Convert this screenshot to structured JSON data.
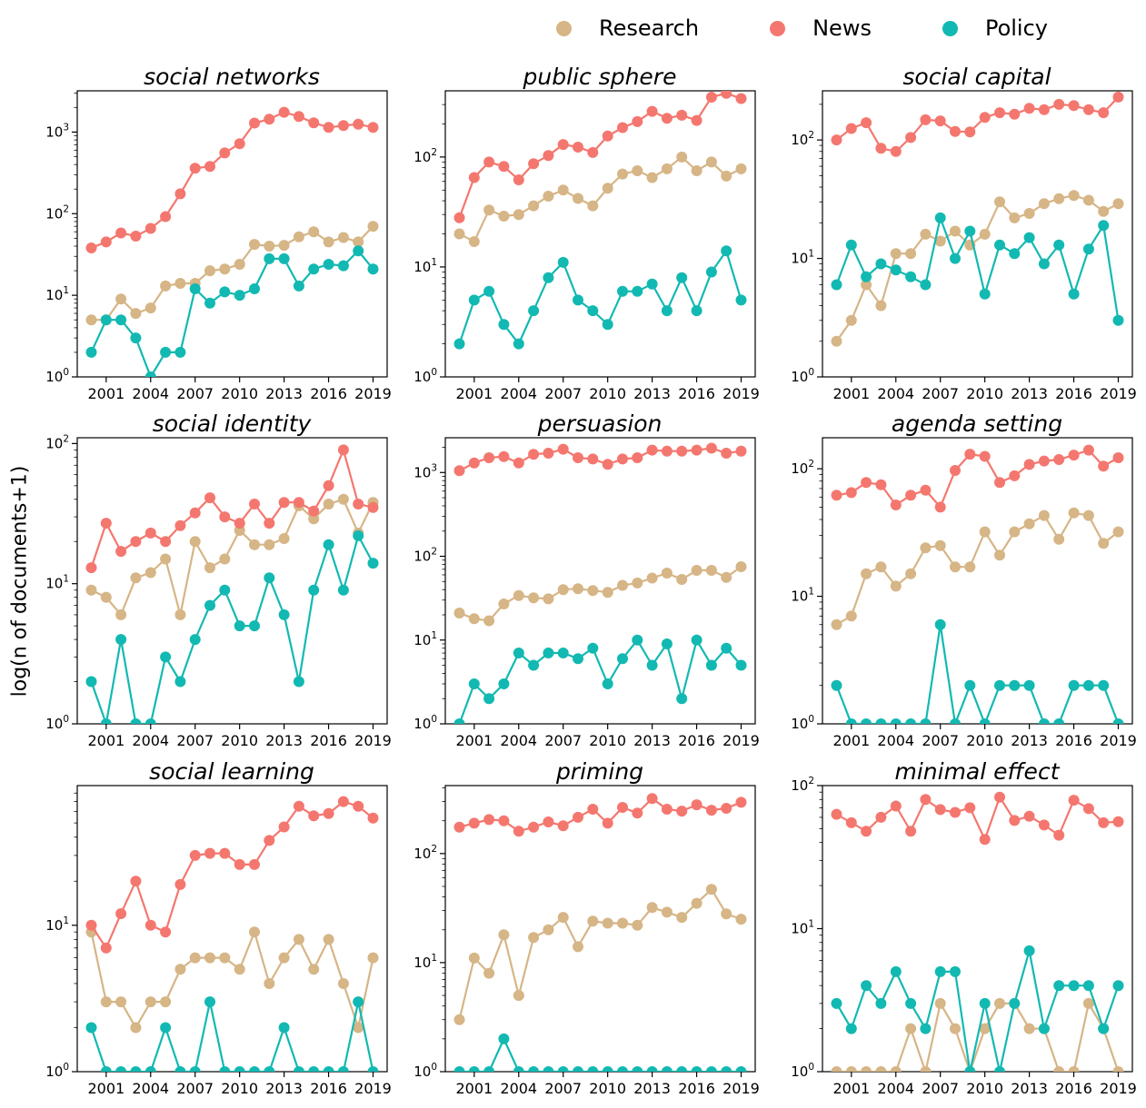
{
  "ylabel": "log(n of documents+1)",
  "legend": {
    "items": [
      {
        "label": "Research",
        "color": "#d6b586"
      },
      {
        "label": "News",
        "color": "#f4776f"
      },
      {
        "label": "Policy",
        "color": "#12b9b2"
      }
    ]
  },
  "axis": {
    "x_ticks": [
      2001,
      2004,
      2007,
      2010,
      2013,
      2016,
      2019
    ],
    "x_range": [
      1999.05,
      2019.95
    ]
  },
  "chart_data": [
    {
      "type": "line",
      "title": "social networks",
      "x": [
        2000,
        2001,
        2002,
        2003,
        2004,
        2005,
        2006,
        2007,
        2008,
        2009,
        2010,
        2011,
        2012,
        2013,
        2014,
        2015,
        2016,
        2017,
        2018,
        2019
      ],
      "ylim": [
        1,
        3200
      ],
      "yticks": [
        1,
        10,
        100,
        1000
      ],
      "series": [
        {
          "name": "Research",
          "values": [
            5,
            5,
            9,
            6,
            7,
            13,
            14,
            14,
            20,
            21,
            24,
            42,
            40,
            41,
            52,
            60,
            45,
            51,
            45,
            70
          ]
        },
        {
          "name": "News",
          "values": [
            38,
            45,
            58,
            53,
            66,
            92,
            175,
            360,
            380,
            555,
            720,
            1290,
            1440,
            1750,
            1550,
            1300,
            1140,
            1200,
            1250,
            1140
          ]
        },
        {
          "name": "Policy",
          "values": [
            2,
            5,
            5,
            3,
            1,
            2,
            2,
            12,
            8,
            11,
            10,
            12,
            28,
            28,
            13,
            21,
            24,
            23,
            35,
            21
          ]
        }
      ]
    },
    {
      "type": "line",
      "title": "public sphere",
      "x": [
        2000,
        2001,
        2002,
        2003,
        2004,
        2005,
        2006,
        2007,
        2008,
        2009,
        2010,
        2011,
        2012,
        2013,
        2014,
        2015,
        2016,
        2017,
        2018,
        2019
      ],
      "ylim": [
        1,
        400
      ],
      "yticks": [
        1,
        10,
        100
      ],
      "series": [
        {
          "name": "Research",
          "values": [
            20,
            17,
            33,
            29,
            30,
            36,
            44,
            50,
            42,
            36,
            52,
            70,
            75,
            65,
            78,
            100,
            75,
            90,
            67,
            78
          ]
        },
        {
          "name": "News",
          "values": [
            28,
            65,
            90,
            82,
            62,
            87,
            103,
            130,
            123,
            110,
            155,
            185,
            210,
            260,
            225,
            240,
            215,
            350,
            380,
            340
          ]
        },
        {
          "name": "Policy",
          "values": [
            2,
            5,
            6,
            3,
            2,
            4,
            8,
            11,
            5,
            4,
            3,
            6,
            6,
            7,
            4,
            8,
            4,
            9,
            14,
            5
          ]
        }
      ]
    },
    {
      "type": "line",
      "title": "social capital",
      "x": [
        2000,
        2001,
        2002,
        2003,
        2004,
        2005,
        2006,
        2007,
        2008,
        2009,
        2010,
        2011,
        2012,
        2013,
        2014,
        2015,
        2016,
        2017,
        2018,
        2019
      ],
      "ylim": [
        1,
        260
      ],
      "yticks": [
        1,
        10,
        100
      ],
      "series": [
        {
          "name": "Research",
          "values": [
            2,
            3,
            6,
            4,
            11,
            11,
            16,
            14,
            17,
            13,
            16,
            30,
            22,
            24,
            29,
            32,
            34,
            31,
            25,
            29
          ]
        },
        {
          "name": "News",
          "values": [
            100,
            125,
            140,
            85,
            80,
            105,
            148,
            145,
            118,
            117,
            155,
            170,
            165,
            185,
            180,
            200,
            195,
            180,
            170,
            230
          ]
        },
        {
          "name": "Policy",
          "values": [
            6,
            13,
            7,
            9,
            8,
            7,
            6,
            22,
            10,
            17,
            5,
            13,
            11,
            15,
            9,
            13,
            5,
            12,
            19,
            3
          ]
        }
      ]
    },
    {
      "type": "line",
      "title": "social identity",
      "x": [
        2000,
        2001,
        2002,
        2003,
        2004,
        2005,
        2006,
        2007,
        2008,
        2009,
        2010,
        2011,
        2012,
        2013,
        2014,
        2015,
        2016,
        2017,
        2018,
        2019
      ],
      "ylim": [
        1,
        110
      ],
      "yticks": [
        1,
        10,
        100
      ],
      "series": [
        {
          "name": "Research",
          "values": [
            9,
            8,
            6,
            11,
            12,
            15,
            6,
            20,
            13,
            15,
            24,
            19,
            19,
            21,
            36,
            29,
            37,
            40,
            23,
            38
          ]
        },
        {
          "name": "News",
          "values": [
            13,
            27,
            17,
            20,
            23,
            20,
            26,
            32,
            41,
            30,
            27,
            37,
            27,
            38,
            38,
            33,
            50,
            90,
            37,
            35
          ]
        },
        {
          "name": "Policy",
          "values": [
            2,
            1,
            4,
            1,
            1,
            3,
            2,
            4,
            7,
            9,
            5,
            5,
            11,
            6,
            2,
            9,
            19,
            9,
            22,
            14
          ]
        }
      ]
    },
    {
      "type": "line",
      "title": "persuasion",
      "x": [
        2000,
        2001,
        2002,
        2003,
        2004,
        2005,
        2006,
        2007,
        2008,
        2009,
        2010,
        2011,
        2012,
        2013,
        2014,
        2015,
        2016,
        2017,
        2018,
        2019
      ],
      "ylim": [
        1,
        2600
      ],
      "yticks": [
        1,
        10,
        100,
        1000
      ],
      "series": [
        {
          "name": "Research",
          "values": [
            21,
            18,
            17,
            27,
            34,
            32,
            31,
            40,
            41,
            39,
            37,
            45,
            48,
            55,
            63,
            53,
            68,
            68,
            56,
            75
          ]
        },
        {
          "name": "News",
          "values": [
            1050,
            1300,
            1500,
            1550,
            1300,
            1650,
            1700,
            1900,
            1500,
            1450,
            1250,
            1450,
            1500,
            1850,
            1800,
            1800,
            1850,
            1950,
            1700,
            1800
          ]
        },
        {
          "name": "Policy",
          "values": [
            1,
            3,
            2,
            3,
            7,
            5,
            7,
            7,
            6,
            8,
            3,
            6,
            10,
            5,
            9,
            2,
            10,
            5,
            8,
            5
          ]
        }
      ]
    },
    {
      "type": "line",
      "title": "agenda setting",
      "x": [
        2000,
        2001,
        2002,
        2003,
        2004,
        2005,
        2006,
        2007,
        2008,
        2009,
        2010,
        2011,
        2012,
        2013,
        2014,
        2015,
        2016,
        2017,
        2018,
        2019
      ],
      "ylim": [
        1,
        175
      ],
      "yticks": [
        1,
        10,
        100
      ],
      "series": [
        {
          "name": "Research",
          "values": [
            6,
            7,
            15,
            17,
            12,
            15,
            24,
            25,
            17,
            17,
            32,
            21,
            32,
            37,
            43,
            28,
            45,
            43,
            26,
            32
          ]
        },
        {
          "name": "News",
          "values": [
            62,
            65,
            78,
            75,
            52,
            62,
            68,
            50,
            97,
            130,
            125,
            78,
            88,
            108,
            115,
            118,
            128,
            140,
            105,
            122
          ]
        },
        {
          "name": "Policy",
          "values": [
            2,
            1,
            1,
            1,
            1,
            1,
            1,
            6,
            1,
            2,
            1,
            2,
            2,
            2,
            1,
            1,
            2,
            2,
            2,
            1
          ]
        }
      ]
    },
    {
      "type": "line",
      "title": "social learning",
      "x": [
        2000,
        2001,
        2002,
        2003,
        2004,
        2005,
        2006,
        2007,
        2008,
        2009,
        2010,
        2011,
        2012,
        2013,
        2014,
        2015,
        2016,
        2017,
        2018,
        2019
      ],
      "ylim": [
        1,
        90
      ],
      "yticks": [
        1,
        10
      ],
      "series": [
        {
          "name": "Research",
          "values": [
            9,
            3,
            3,
            2,
            3,
            3,
            5,
            6,
            6,
            6,
            5,
            9,
            4,
            6,
            8,
            5,
            8,
            4,
            2,
            6
          ]
        },
        {
          "name": "News",
          "values": [
            10,
            7,
            12,
            20,
            10,
            9,
            19,
            30,
            31,
            31,
            26,
            26,
            38,
            47,
            65,
            56,
            58,
            70,
            65,
            54
          ]
        },
        {
          "name": "Policy",
          "values": [
            2,
            1,
            1,
            1,
            1,
            2,
            1,
            1,
            3,
            1,
            1,
            1,
            1,
            2,
            1,
            1,
            1,
            1,
            3,
            1
          ]
        }
      ]
    },
    {
      "type": "line",
      "title": "priming",
      "x": [
        2000,
        2001,
        2002,
        2003,
        2004,
        2005,
        2006,
        2007,
        2008,
        2009,
        2010,
        2011,
        2012,
        2013,
        2014,
        2015,
        2016,
        2017,
        2018,
        2019
      ],
      "ylim": [
        1,
        420
      ],
      "yticks": [
        1,
        10,
        100
      ],
      "series": [
        {
          "name": "Research",
          "values": [
            3,
            11,
            8,
            18,
            5,
            17,
            20,
            26,
            14,
            24,
            23,
            23,
            22,
            32,
            29,
            26,
            35,
            47,
            28,
            25
          ]
        },
        {
          "name": "News",
          "values": [
            175,
            190,
            205,
            200,
            160,
            175,
            195,
            180,
            215,
            255,
            190,
            265,
            235,
            320,
            255,
            245,
            280,
            250,
            260,
            295
          ]
        },
        {
          "name": "Policy",
          "values": [
            1,
            1,
            1,
            2,
            1,
            1,
            1,
            1,
            1,
            1,
            1,
            1,
            1,
            1,
            1,
            1,
            1,
            1,
            1,
            1
          ]
        }
      ]
    },
    {
      "type": "line",
      "title": "minimal effect",
      "x": [
        2000,
        2001,
        2002,
        2003,
        2004,
        2005,
        2006,
        2007,
        2008,
        2009,
        2010,
        2011,
        2012,
        2013,
        2014,
        2015,
        2016,
        2017,
        2018,
        2019
      ],
      "ylim": [
        1,
        100
      ],
      "yticks": [
        1,
        10,
        100
      ],
      "series": [
        {
          "name": "Research",
          "values": [
            1,
            1,
            1,
            1,
            1,
            2,
            1,
            3,
            2,
            1,
            2,
            3,
            3,
            2,
            2,
            1,
            1,
            3,
            2,
            1
          ]
        },
        {
          "name": "News",
          "values": [
            63,
            55,
            48,
            60,
            72,
            48,
            80,
            68,
            65,
            70,
            42,
            83,
            57,
            61,
            53,
            45,
            79,
            69,
            55,
            56
          ]
        },
        {
          "name": "Policy",
          "values": [
            3,
            2,
            4,
            3,
            5,
            3,
            2,
            5,
            5,
            1,
            3,
            1,
            3,
            7,
            2,
            4,
            4,
            4,
            2,
            4
          ]
        }
      ]
    }
  ]
}
